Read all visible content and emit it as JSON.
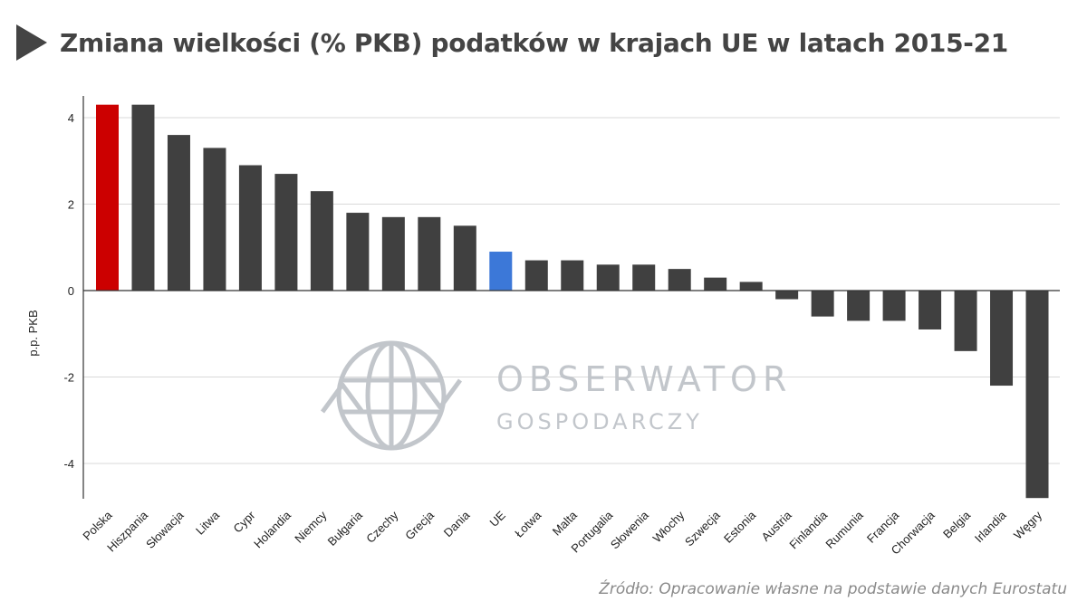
{
  "title": "Zmiana wielkości (% PKB) podatków w krajach UE w latach 2015-21",
  "source": "Źródło: Opracowanie własne na podstawie danych Eurostatu",
  "watermark": {
    "line1": "OBSERWATOR",
    "line2": "GOSPODARCZY",
    "icon": "globe-arrows-icon"
  },
  "colors": {
    "default_bar": "#404040",
    "highlight_poland": "#cc0000",
    "highlight_eu": "#3c78d8",
    "title": "#444444",
    "grid": "#d9d9d9",
    "watermark": "#bfc3c9"
  },
  "chart_data": {
    "type": "bar",
    "title": "Zmiana wielkości (% PKB) podatków w krajach UE w latach 2015-21",
    "xlabel": "",
    "ylabel": "p.p. PKB",
    "ylim": [
      -4.8,
      4.5
    ],
    "yticks": [
      -4,
      -2,
      0,
      2,
      4
    ],
    "grid": true,
    "categories": [
      "Polska",
      "Hiszpania",
      "Słowacja",
      "Litwa",
      "Cypr",
      "Holandia",
      "Niemcy",
      "Bułgaria",
      "Czechy",
      "Grecja",
      "Dania",
      "UE",
      "Łotwa",
      "Malta",
      "Portugalia",
      "Słowenia",
      "Włochy",
      "Szwecja",
      "Estonia",
      "Austria",
      "Finlandia",
      "Rumunia",
      "Francja",
      "Chorwacja",
      "Belgia",
      "Irlandia",
      "Węgry"
    ],
    "values": [
      4.3,
      4.3,
      3.6,
      3.3,
      2.9,
      2.7,
      2.3,
      1.8,
      1.7,
      1.7,
      1.5,
      0.9,
      0.7,
      0.7,
      0.6,
      0.6,
      0.5,
      0.3,
      0.2,
      -0.2,
      -0.6,
      -0.7,
      -0.7,
      -0.9,
      -1.4,
      -2.2,
      -4.8
    ],
    "highlight": {
      "Polska": "#cc0000",
      "UE": "#3c78d8"
    }
  }
}
